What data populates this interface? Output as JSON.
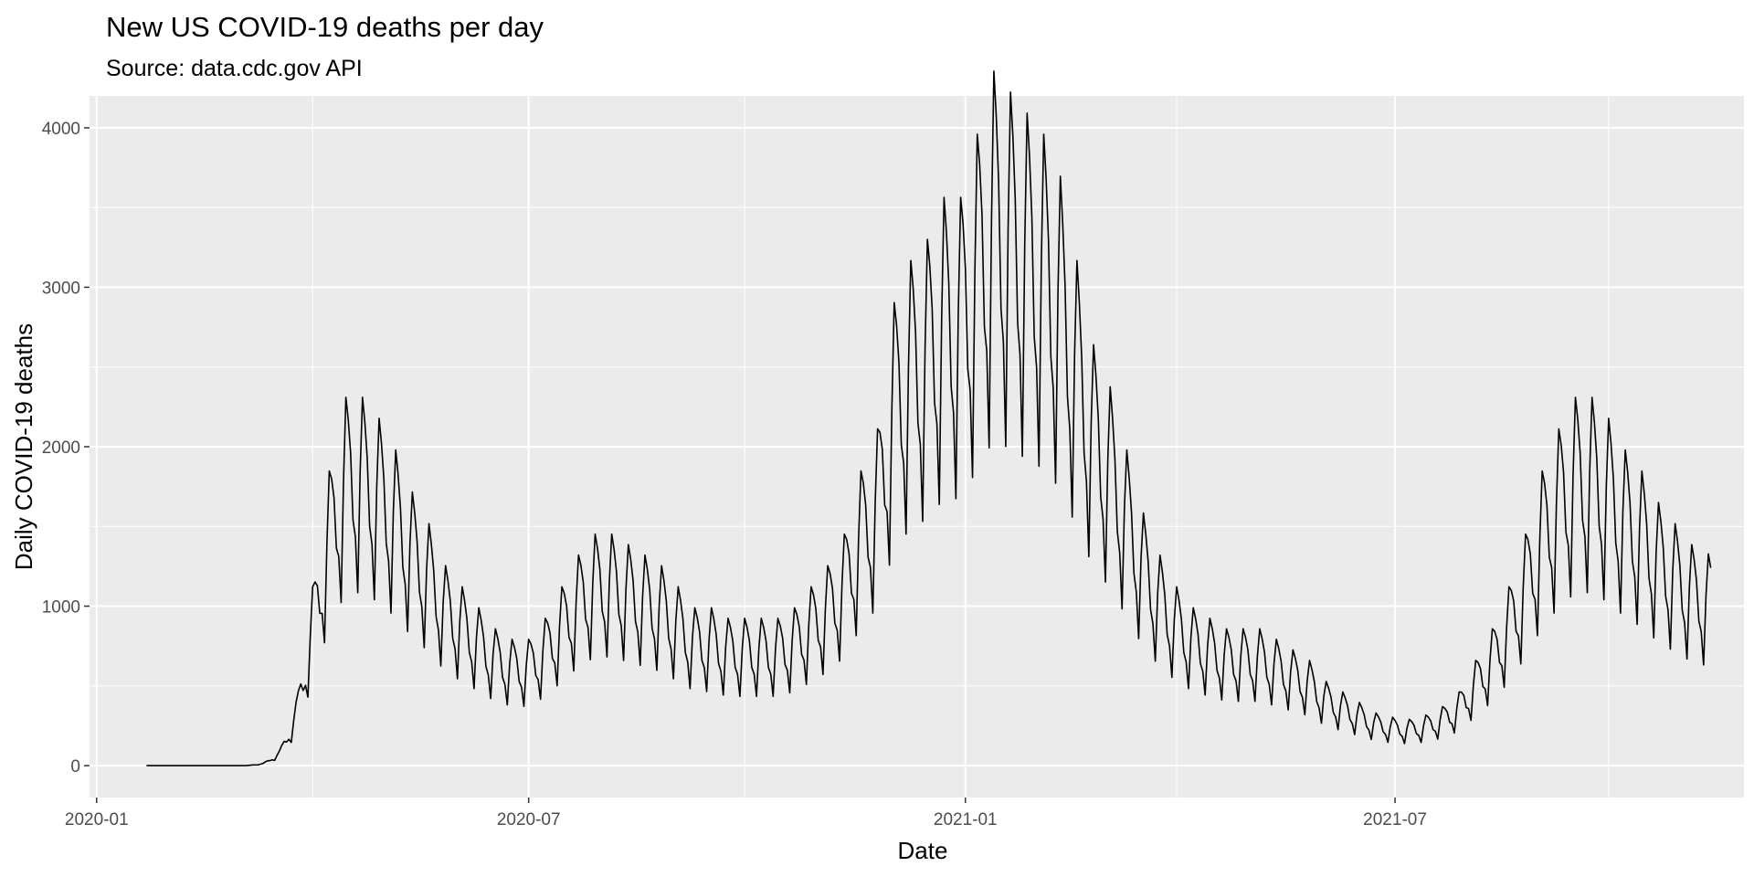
{
  "chart_data": {
    "type": "line",
    "title": "New US COVID-19 deaths per day",
    "subtitle": "Source: data.cdc.gov API",
    "xlabel": "Date",
    "ylabel": "Daily COVID-19 deaths",
    "x_ticks": [
      "2020-01",
      "2020-07",
      "2021-01",
      "2021-07"
    ],
    "y_ticks": [
      0,
      1000,
      2000,
      3000,
      4000
    ],
    "xlim": [
      "2019-12-29",
      "2021-11-25"
    ],
    "ylim": [
      -200,
      4200
    ],
    "grid": true,
    "panel_background": "#ebebeb",
    "grid_color": "#ffffff",
    "line_color": "#000000",
    "series": [
      {
        "x_start": "2020-01-22",
        "x_end": "2021-11-11",
        "frequency": "daily",
        "weekly_points": [
          [
            "2020-01-22",
            0
          ],
          [
            "2020-02-05",
            0
          ],
          [
            "2020-02-19",
            0
          ],
          [
            "2020-03-04",
            0
          ],
          [
            "2020-03-11",
            10
          ],
          [
            "2020-03-18",
            70
          ],
          [
            "2020-03-25",
            300
          ],
          [
            "2020-04-01",
            850
          ],
          [
            "2020-04-08",
            1400
          ],
          [
            "2020-04-15",
            1750
          ],
          [
            "2020-04-22",
            1750
          ],
          [
            "2020-04-29",
            1650
          ],
          [
            "2020-05-06",
            1500
          ],
          [
            "2020-05-13",
            1300
          ],
          [
            "2020-05-20",
            1150
          ],
          [
            "2020-05-27",
            950
          ],
          [
            "2020-06-03",
            850
          ],
          [
            "2020-06-10",
            750
          ],
          [
            "2020-06-17",
            650
          ],
          [
            "2020-06-24",
            600
          ],
          [
            "2020-07-01",
            600
          ],
          [
            "2020-07-08",
            700
          ],
          [
            "2020-07-15",
            850
          ],
          [
            "2020-07-22",
            1000
          ],
          [
            "2020-07-29",
            1100
          ],
          [
            "2020-08-05",
            1100
          ],
          [
            "2020-08-12",
            1050
          ],
          [
            "2020-08-19",
            1000
          ],
          [
            "2020-08-26",
            950
          ],
          [
            "2020-09-02",
            850
          ],
          [
            "2020-09-09",
            750
          ],
          [
            "2020-09-16",
            750
          ],
          [
            "2020-09-23",
            700
          ],
          [
            "2020-09-30",
            700
          ],
          [
            "2020-10-07",
            700
          ],
          [
            "2020-10-14",
            700
          ],
          [
            "2020-10-21",
            750
          ],
          [
            "2020-10-28",
            850
          ],
          [
            "2020-11-04",
            950
          ],
          [
            "2020-11-11",
            1100
          ],
          [
            "2020-11-18",
            1400
          ],
          [
            "2020-11-25",
            1600
          ],
          [
            "2020-12-02",
            2200
          ],
          [
            "2020-12-09",
            2400
          ],
          [
            "2020-12-16",
            2500
          ],
          [
            "2020-12-23",
            2700
          ],
          [
            "2020-12-30",
            2700
          ],
          [
            "2021-01-06",
            3000
          ],
          [
            "2021-01-13",
            3300
          ],
          [
            "2021-01-20",
            3200
          ],
          [
            "2021-01-27",
            3100
          ],
          [
            "2021-02-03",
            3000
          ],
          [
            "2021-02-10",
            2800
          ],
          [
            "2021-02-17",
            2400
          ],
          [
            "2021-02-24",
            2000
          ],
          [
            "2021-03-03",
            1800
          ],
          [
            "2021-03-10",
            1500
          ],
          [
            "2021-03-17",
            1200
          ],
          [
            "2021-03-24",
            1000
          ],
          [
            "2021-03-31",
            850
          ],
          [
            "2021-04-07",
            750
          ],
          [
            "2021-04-14",
            700
          ],
          [
            "2021-04-21",
            650
          ],
          [
            "2021-04-28",
            650
          ],
          [
            "2021-05-05",
            650
          ],
          [
            "2021-05-12",
            600
          ],
          [
            "2021-05-19",
            550
          ],
          [
            "2021-05-26",
            500
          ],
          [
            "2021-06-02",
            400
          ],
          [
            "2021-06-09",
            350
          ],
          [
            "2021-06-16",
            300
          ],
          [
            "2021-06-23",
            250
          ],
          [
            "2021-06-30",
            230
          ],
          [
            "2021-07-07",
            220
          ],
          [
            "2021-07-14",
            240
          ],
          [
            "2021-07-21",
            280
          ],
          [
            "2021-07-28",
            350
          ],
          [
            "2021-08-04",
            500
          ],
          [
            "2021-08-11",
            650
          ],
          [
            "2021-08-18",
            850
          ],
          [
            "2021-08-25",
            1100
          ],
          [
            "2021-09-01",
            1400
          ],
          [
            "2021-09-08",
            1600
          ],
          [
            "2021-09-15",
            1750
          ],
          [
            "2021-09-22",
            1750
          ],
          [
            "2021-09-29",
            1650
          ],
          [
            "2021-10-06",
            1500
          ],
          [
            "2021-10-13",
            1400
          ],
          [
            "2021-10-20",
            1250
          ],
          [
            "2021-10-27",
            1150
          ],
          [
            "2021-11-03",
            1050
          ],
          [
            "2021-11-11",
            1000
          ]
        ],
        "weekly_pattern": [
          0.82,
          0.62,
          1.05,
          1.32,
          1.24,
          1.12,
          0.88
        ]
      }
    ]
  }
}
